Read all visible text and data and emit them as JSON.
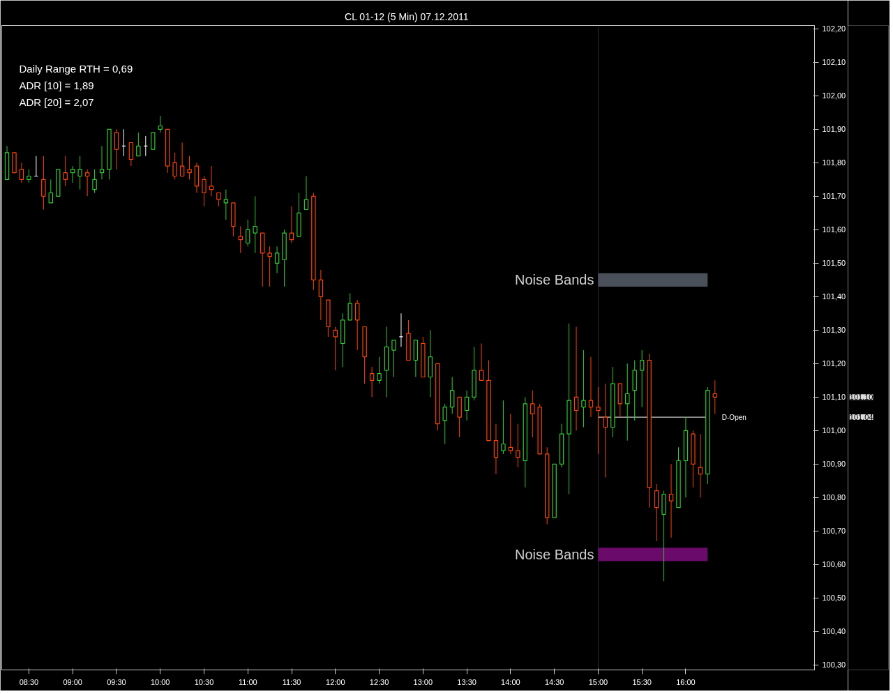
{
  "chart_data": {
    "type": "candlestick",
    "title": "CL 01-12 (5 Min)  07.12.2011",
    "annotations": [
      "Daily Range RTH = 0,69",
      "ADR [10] = 1,89",
      "ADR [20] = 2,07",
      "101,10",
      "101,04"
    ],
    "x": [
      8.25,
      8.3333,
      8.4167,
      8.5,
      8.5833,
      8.6667,
      8.75,
      8.8333,
      8.9167,
      9.0,
      9.0833,
      9.1667,
      9.25,
      9.3333,
      9.4167,
      9.5,
      9.5833,
      9.6667,
      9.75,
      9.8333,
      9.9167,
      10.0,
      10.0833,
      10.1667,
      10.25,
      10.3333,
      10.4167,
      10.5,
      10.5833,
      10.6667,
      10.75,
      10.8333,
      10.9167,
      11.0,
      11.0833,
      11.1667,
      11.25,
      11.3333,
      11.4167,
      11.5,
      11.5833,
      11.6667,
      11.75,
      11.8333,
      11.9167,
      12.0,
      12.0833,
      12.1667,
      12.25,
      12.3333,
      12.4167,
      12.5,
      12.5833,
      12.6667,
      12.75,
      12.8333,
      12.9167,
      13.0,
      13.0833,
      13.1667,
      13.25,
      13.3333,
      13.4167,
      13.5,
      13.5833,
      13.6667,
      13.75,
      13.8333,
      13.9167,
      14.0,
      14.0833,
      14.1667,
      14.25,
      14.3333,
      14.4167,
      14.5,
      14.5833,
      14.6667,
      14.75,
      14.8333,
      14.9167,
      15.0,
      15.0833,
      15.1667,
      15.25,
      15.3333,
      15.4167,
      15.5,
      15.5833,
      15.6667,
      15.75,
      15.8333,
      15.9167,
      16.0,
      16.0833,
      16.1667,
      16.25,
      16.3333
    ],
    "ohlc": [
      [
        101.75,
        101.85,
        101.75,
        101.83
      ],
      [
        101.83,
        101.83,
        101.77,
        101.77
      ],
      [
        101.78,
        101.8,
        101.74,
        101.75
      ],
      [
        101.75,
        101.78,
        101.74,
        101.76
      ],
      [
        101.76,
        101.82,
        101.76,
        101.76
      ],
      [
        101.75,
        101.82,
        101.66,
        101.7
      ],
      [
        101.68,
        101.75,
        101.68,
        101.71
      ],
      [
        101.7,
        101.78,
        101.7,
        101.78
      ],
      [
        101.77,
        101.82,
        101.73,
        101.75
      ],
      [
        101.77,
        101.79,
        101.74,
        101.78
      ],
      [
        101.76,
        101.82,
        101.72,
        101.78
      ],
      [
        101.77,
        101.78,
        101.7,
        101.76
      ],
      [
        101.72,
        101.78,
        101.71,
        101.75
      ],
      [
        101.77,
        101.85,
        101.75,
        101.78
      ],
      [
        101.78,
        101.9,
        101.75,
        101.9
      ],
      [
        101.89,
        101.9,
        101.78,
        101.84
      ],
      [
        101.85,
        101.9,
        101.82,
        101.85
      ],
      [
        101.86,
        101.86,
        101.79,
        101.81
      ],
      [
        101.82,
        101.89,
        101.82,
        101.85
      ],
      [
        101.85,
        101.88,
        101.82,
        101.85
      ],
      [
        101.84,
        101.89,
        101.84,
        101.89
      ],
      [
        101.9,
        101.94,
        101.89,
        101.91
      ],
      [
        101.9,
        101.9,
        101.77,
        101.79
      ],
      [
        101.8,
        101.83,
        101.75,
        101.76
      ],
      [
        101.79,
        101.86,
        101.76,
        101.76
      ],
      [
        101.78,
        101.82,
        101.75,
        101.77
      ],
      [
        101.79,
        101.8,
        101.71,
        101.73
      ],
      [
        101.75,
        101.76,
        101.67,
        101.71
      ],
      [
        101.73,
        101.79,
        101.7,
        101.72
      ],
      [
        101.71,
        101.71,
        101.67,
        101.69
      ],
      [
        101.68,
        101.72,
        101.63,
        101.69
      ],
      [
        101.68,
        101.68,
        101.58,
        101.61
      ],
      [
        101.58,
        101.61,
        101.53,
        101.57
      ],
      [
        101.56,
        101.63,
        101.55,
        101.6
      ],
      [
        101.59,
        101.7,
        101.53,
        101.61
      ],
      [
        101.59,
        101.59,
        101.43,
        101.53
      ],
      [
        101.53,
        101.55,
        101.43,
        101.52
      ],
      [
        101.5,
        101.55,
        101.47,
        101.53
      ],
      [
        101.51,
        101.6,
        101.43,
        101.59
      ],
      [
        101.59,
        101.67,
        101.56,
        101.57
      ],
      [
        101.58,
        101.71,
        101.58,
        101.65
      ],
      [
        101.66,
        101.76,
        101.66,
        101.69
      ],
      [
        101.7,
        101.71,
        101.42,
        101.45
      ],
      [
        101.45,
        101.48,
        101.33,
        101.4
      ],
      [
        101.39,
        101.39,
        101.28,
        101.31
      ],
      [
        101.3,
        101.31,
        101.18,
        101.28
      ],
      [
        101.26,
        101.35,
        101.19,
        101.33
      ],
      [
        101.33,
        101.41,
        101.33,
        101.38
      ],
      [
        101.38,
        101.39,
        101.24,
        101.33
      ],
      [
        101.31,
        101.31,
        101.14,
        101.22
      ],
      [
        101.17,
        101.19,
        101.1,
        101.15
      ],
      [
        101.15,
        101.22,
        101.14,
        101.17
      ],
      [
        101.18,
        101.31,
        101.1,
        101.25
      ],
      [
        101.24,
        101.27,
        101.16,
        101.27
      ],
      [
        101.28,
        101.35,
        101.25,
        101.28
      ],
      [
        101.29,
        101.33,
        101.21,
        101.21
      ],
      [
        101.21,
        101.27,
        101.16,
        101.27
      ],
      [
        101.26,
        101.28,
        101.16,
        101.16
      ],
      [
        101.16,
        101.3,
        101.1,
        101.22
      ],
      [
        101.2,
        101.2,
        101.0,
        101.02
      ],
      [
        101.03,
        101.08,
        100.96,
        101.07
      ],
      [
        101.07,
        101.16,
        101.05,
        101.12
      ],
      [
        101.1,
        101.1,
        100.98,
        101.04
      ],
      [
        101.06,
        101.12,
        101.03,
        101.1
      ],
      [
        101.1,
        101.25,
        101.09,
        101.18
      ],
      [
        101.18,
        101.26,
        101.15,
        101.15
      ],
      [
        101.15,
        101.21,
        100.97,
        100.97
      ],
      [
        100.97,
        101.02,
        100.87,
        100.92
      ],
      [
        100.94,
        101.09,
        100.93,
        100.96
      ],
      [
        100.95,
        101.05,
        100.93,
        100.94
      ],
      [
        100.94,
        101.02,
        100.89,
        100.92
      ],
      [
        100.91,
        101.1,
        100.83,
        101.08
      ],
      [
        101.08,
        101.12,
        100.98,
        101.05
      ],
      [
        101.07,
        101.08,
        100.93,
        100.93
      ],
      [
        100.93,
        100.95,
        100.72,
        100.74
      ],
      [
        100.74,
        100.9,
        100.74,
        100.9
      ],
      [
        100.9,
        101.02,
        100.89,
        100.99
      ],
      [
        100.99,
        101.32,
        100.81,
        101.09
      ],
      [
        101.1,
        101.31,
        101.0,
        101.06
      ],
      [
        101.07,
        101.24,
        101.01,
        101.09
      ],
      [
        101.09,
        101.22,
        101.04,
        101.07
      ],
      [
        101.07,
        101.13,
        100.93,
        101.06
      ],
      [
        101.04,
        101.14,
        100.86,
        101.01
      ],
      [
        101.01,
        101.19,
        100.98,
        101.14
      ],
      [
        101.14,
        101.14,
        101.04,
        101.08
      ],
      [
        101.08,
        101.2,
        100.97,
        101.11
      ],
      [
        101.12,
        101.21,
        101.03,
        101.18
      ],
      [
        101.18,
        101.24,
        101.07,
        101.21
      ],
      [
        101.21,
        101.23,
        100.77,
        100.83
      ],
      [
        100.82,
        100.84,
        100.67,
        100.77
      ],
      [
        100.75,
        100.82,
        100.55,
        100.81
      ],
      [
        100.81,
        100.9,
        100.68,
        100.79
      ],
      [
        100.77,
        100.95,
        100.77,
        100.91
      ],
      [
        100.91,
        101.04,
        100.8,
        101.0
      ],
      [
        100.99,
        101.0,
        100.83,
        100.9
      ],
      [
        100.89,
        100.99,
        100.8,
        100.87
      ],
      [
        100.87,
        101.13,
        100.84,
        101.12
      ],
      [
        101.11,
        101.15,
        101.05,
        101.1
      ]
    ],
    "colors": [
      "#32cd32",
      "#ff4500",
      "#ff4500",
      "#32cd32",
      "#ffffff",
      "#ff4500",
      "#32cd32",
      "#32cd32",
      "#ff4500",
      "#32cd32",
      "#32cd32",
      "#ff4500",
      "#32cd32",
      "#32cd32",
      "#32cd32",
      "#ff4500",
      "#ffffff",
      "#ff4500",
      "#32cd32",
      "#ffffff",
      "#32cd32",
      "#32cd32",
      "#ff4500",
      "#ff4500",
      "#ff4500",
      "#ff4500",
      "#ff4500",
      "#ff4500",
      "#ff4500",
      "#ff4500",
      "#32cd32",
      "#ff4500",
      "#ff4500",
      "#32cd32",
      "#32cd32",
      "#ff4500",
      "#ff4500",
      "#32cd32",
      "#32cd32",
      "#ff4500",
      "#32cd32",
      "#32cd32",
      "#ff4500",
      "#ff4500",
      "#ff4500",
      "#ff4500",
      "#32cd32",
      "#32cd32",
      "#ff4500",
      "#ff4500",
      "#ff4500",
      "#32cd32",
      "#32cd32",
      "#32cd32",
      "#ffffff",
      "#ff4500",
      "#32cd32",
      "#ff4500",
      "#32cd32",
      "#ff4500",
      "#32cd32",
      "#32cd32",
      "#ff4500",
      "#32cd32",
      "#32cd32",
      "#ff4500",
      "#ff4500",
      "#ff4500",
      "#32cd32",
      "#ff4500",
      "#ff4500",
      "#32cd32",
      "#ff4500",
      "#ff4500",
      "#ff4500",
      "#32cd32",
      "#32cd32",
      "#32cd32",
      "#ff4500",
      "#32cd32",
      "#ff4500",
      "#ff4500",
      "#ff4500",
      "#32cd32",
      "#ff4500",
      "#32cd32",
      "#32cd32",
      "#32cd32",
      "#ff4500",
      "#ff4500",
      "#32cd32",
      "#ff4500",
      "#32cd32",
      "#32cd32",
      "#ff4500",
      "#ff4500",
      "#32cd32",
      "#ff4500"
    ],
    "xlim": [
      8.19,
      17.47
    ],
    "xticks": [
      {
        "value": 8.5,
        "label": "08:30"
      },
      {
        "value": 9,
        "label": "09:00"
      },
      {
        "value": 9.5,
        "label": "09:30"
      },
      {
        "value": 10,
        "label": "10:00"
      },
      {
        "value": 10.5,
        "label": "10:30"
      },
      {
        "value": 11,
        "label": "11:00"
      },
      {
        "value": 11.5,
        "label": "11:30"
      },
      {
        "value": 12,
        "label": "12:00"
      },
      {
        "value": 12.5,
        "label": "12:30"
      },
      {
        "value": 13,
        "label": "13:00"
      },
      {
        "value": 13.5,
        "label": "13:30"
      },
      {
        "value": 14,
        "label": "14:00"
      },
      {
        "value": 14.5,
        "label": "14:30"
      },
      {
        "value": 15,
        "label": "15:00"
      },
      {
        "value": 15.5,
        "label": "15:30"
      },
      {
        "value": 16,
        "label": "16:00"
      }
    ],
    "ylim": [
      100.285,
      102.21
    ],
    "yticks": [
      {
        "value": 100.3,
        "label": "100,30"
      },
      {
        "value": 100.4,
        "label": "100,40"
      },
      {
        "value": 100.5,
        "label": "100,50"
      },
      {
        "value": 100.6,
        "label": "100,60"
      },
      {
        "value": 100.7,
        "label": "100,70"
      },
      {
        "value": 100.8,
        "label": "100,80"
      },
      {
        "value": 100.9,
        "label": "100,90"
      },
      {
        "value": 101.0,
        "label": "101,00"
      },
      {
        "value": 101.1,
        "label": "101,10"
      },
      {
        "value": 101.2,
        "label": "101,20"
      },
      {
        "value": 101.3,
        "label": "101,30"
      },
      {
        "value": 101.4,
        "label": "101,40"
      },
      {
        "value": 101.5,
        "label": "101,50"
      },
      {
        "value": 101.6,
        "label": "101,60"
      },
      {
        "value": 101.7,
        "label": "101,70"
      },
      {
        "value": 101.8,
        "label": "101,80"
      },
      {
        "value": 101.9,
        "label": "101,90"
      },
      {
        "value": 102.0,
        "label": "102,00"
      },
      {
        "value": 102.1,
        "label": "102,10"
      },
      {
        "value": 102.2,
        "label": "102,20"
      }
    ],
    "ref_lines": [
      {
        "axis": "x",
        "value": 15,
        "color": "#3a1f3a"
      },
      {
        "axis": "y",
        "value": 101.04,
        "label": "D-Open",
        "color": "#ffffff"
      }
    ],
    "bands": [
      {
        "axis": "y",
        "from": 101.43,
        "to": 101.47,
        "label": "Noise Bands",
        "color": "#4a505a"
      },
      {
        "axis": "y",
        "from": 100.61,
        "to": 100.65,
        "label": "Noise Bands",
        "color": "#6a0a6a"
      }
    ],
    "grid": false
  }
}
